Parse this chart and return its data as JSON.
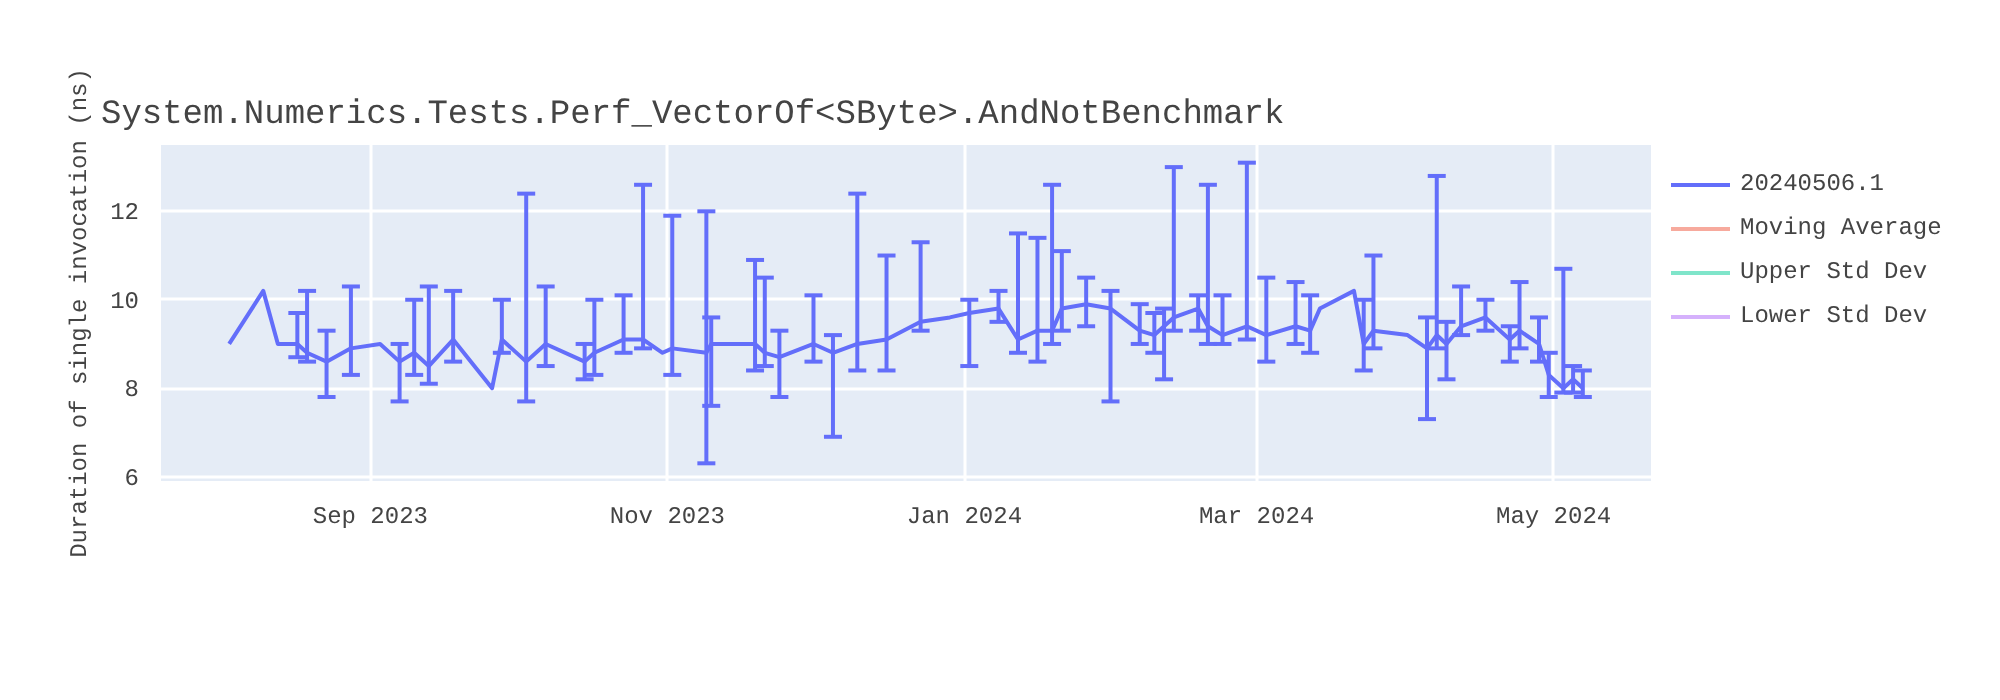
{
  "chart_data": {
    "type": "line",
    "title": "System.Numerics.Tests.Perf_VectorOf<SByte>.AndNotBenchmark",
    "ylabel": "Duration of single invocation (ns)",
    "xlim": [
      "2023-07-20",
      "2024-05-21"
    ],
    "ylim": [
      5.9,
      13.5
    ],
    "yticks": [
      6,
      8,
      10,
      12
    ],
    "xticks": [
      {
        "value": "2023-09-01",
        "label": "Sep 2023"
      },
      {
        "value": "2023-11-01",
        "label": "Nov 2023"
      },
      {
        "value": "2024-01-01",
        "label": "Jan 2024"
      },
      {
        "value": "2024-03-01",
        "label": "Mar 2024"
      },
      {
        "value": "2024-05-01",
        "label": "May 2024"
      }
    ],
    "grid": true,
    "legend": "top right",
    "marker": "none",
    "line_style": "solid",
    "series": [
      {
        "name": "20240506.1",
        "color": "#636efa",
        "x": [
          "2023-08-03",
          "2023-08-10",
          "2023-08-13",
          "2023-08-17",
          "2023-08-19",
          "2023-08-23",
          "2023-08-28",
          "2023-09-03",
          "2023-09-07",
          "2023-09-10",
          "2023-09-13",
          "2023-09-18",
          "2023-09-26",
          "2023-09-28",
          "2023-10-03",
          "2023-10-07",
          "2023-10-15",
          "2023-10-17",
          "2023-10-23",
          "2023-10-27",
          "2023-10-31",
          "2023-11-02",
          "2023-11-09",
          "2023-11-10",
          "2023-11-19",
          "2023-11-21",
          "2023-11-24",
          "2023-12-01",
          "2023-12-05",
          "2023-12-10",
          "2023-12-16",
          "2023-12-23",
          "2023-12-29",
          "2024-01-02",
          "2024-01-08",
          "2024-01-12",
          "2024-01-16",
          "2024-01-19",
          "2024-01-21",
          "2024-01-26",
          "2024-01-31",
          "2024-02-06",
          "2024-02-09",
          "2024-02-11",
          "2024-02-13",
          "2024-02-18",
          "2024-02-20",
          "2024-02-23",
          "2024-02-28",
          "2024-03-03",
          "2024-03-09",
          "2024-03-12",
          "2024-03-14",
          "2024-03-21",
          "2024-03-23",
          "2024-03-25",
          "2024-04-01",
          "2024-04-05",
          "2024-04-07",
          "2024-04-09",
          "2024-04-12",
          "2024-04-17",
          "2024-04-22",
          "2024-04-24",
          "2024-04-28",
          "2024-04-30",
          "2024-05-03",
          "2024-05-05",
          "2024-05-07"
        ],
        "values": [
          9.0,
          10.2,
          9.0,
          9.0,
          8.8,
          8.6,
          8.9,
          9.0,
          8.6,
          8.8,
          8.5,
          9.1,
          8.0,
          9.1,
          8.6,
          9.0,
          8.6,
          8.8,
          9.1,
          9.1,
          8.8,
          8.9,
          8.8,
          9.0,
          9.0,
          8.8,
          8.7,
          9.0,
          8.8,
          9.0,
          9.1,
          9.5,
          9.6,
          9.7,
          9.8,
          9.1,
          9.3,
          9.3,
          9.8,
          9.9,
          9.8,
          9.3,
          9.2,
          9.4,
          9.6,
          9.8,
          9.4,
          9.2,
          9.4,
          9.2,
          9.4,
          9.3,
          9.8,
          10.2,
          9.0,
          9.3,
          9.2,
          8.9,
          9.2,
          9.0,
          9.4,
          9.6,
          9.1,
          9.3,
          9.0,
          8.3,
          8.0,
          8.2,
          8.0
        ],
        "errors": [
          null,
          null,
          null,
          [
            8.7,
            9.7
          ],
          [
            8.6,
            10.2
          ],
          [
            7.8,
            9.3
          ],
          [
            8.3,
            10.3
          ],
          null,
          [
            7.7,
            9.0
          ],
          [
            8.3,
            10.0
          ],
          [
            8.1,
            10.3
          ],
          [
            8.6,
            10.2
          ],
          null,
          [
            8.8,
            10.0
          ],
          [
            7.7,
            12.4
          ],
          [
            8.5,
            10.3
          ],
          [
            8.2,
            9.0
          ],
          [
            8.3,
            10.0
          ],
          [
            8.8,
            10.1
          ],
          [
            8.9,
            12.6
          ],
          null,
          [
            8.3,
            11.9
          ],
          [
            6.3,
            12.0
          ],
          [
            7.6,
            9.6
          ],
          [
            8.4,
            10.9
          ],
          [
            8.5,
            10.5
          ],
          [
            7.8,
            9.3
          ],
          [
            8.6,
            10.1
          ],
          [
            6.9,
            9.2
          ],
          [
            8.4,
            12.4
          ],
          [
            8.4,
            11.0
          ],
          [
            9.3,
            11.3
          ],
          null,
          [
            8.5,
            10.0
          ],
          [
            9.5,
            10.2
          ],
          [
            8.8,
            11.5
          ],
          [
            8.6,
            11.4
          ],
          [
            9.0,
            12.6
          ],
          [
            9.3,
            11.1
          ],
          [
            9.4,
            10.5
          ],
          [
            7.7,
            10.2
          ],
          [
            9.0,
            9.9
          ],
          [
            8.8,
            9.7
          ],
          [
            8.2,
            9.8
          ],
          [
            9.3,
            13.0
          ],
          [
            9.3,
            10.1
          ],
          [
            9.0,
            12.6
          ],
          [
            9.0,
            10.1
          ],
          [
            9.1,
            13.1
          ],
          [
            8.6,
            10.5
          ],
          [
            9.0,
            10.4
          ],
          [
            8.8,
            10.1
          ],
          null,
          null,
          [
            8.4,
            10.0
          ],
          [
            8.9,
            11.0
          ],
          null,
          [
            7.3,
            9.6
          ],
          [
            8.9,
            12.8
          ],
          [
            8.2,
            9.5
          ],
          [
            9.2,
            10.3
          ],
          [
            9.3,
            10.0
          ],
          [
            8.6,
            9.4
          ],
          [
            8.9,
            10.4
          ],
          [
            8.6,
            9.6
          ],
          [
            7.8,
            8.8
          ],
          [
            7.9,
            10.7
          ],
          [
            7.9,
            8.5
          ],
          [
            7.8,
            8.4
          ]
        ]
      },
      {
        "name": "Moving Average",
        "color": "#ef553b"
      },
      {
        "name": "Upper Std Dev",
        "color": "#00cc96"
      },
      {
        "name": "Lower Std Dev",
        "color": "#ab63fa"
      }
    ]
  }
}
